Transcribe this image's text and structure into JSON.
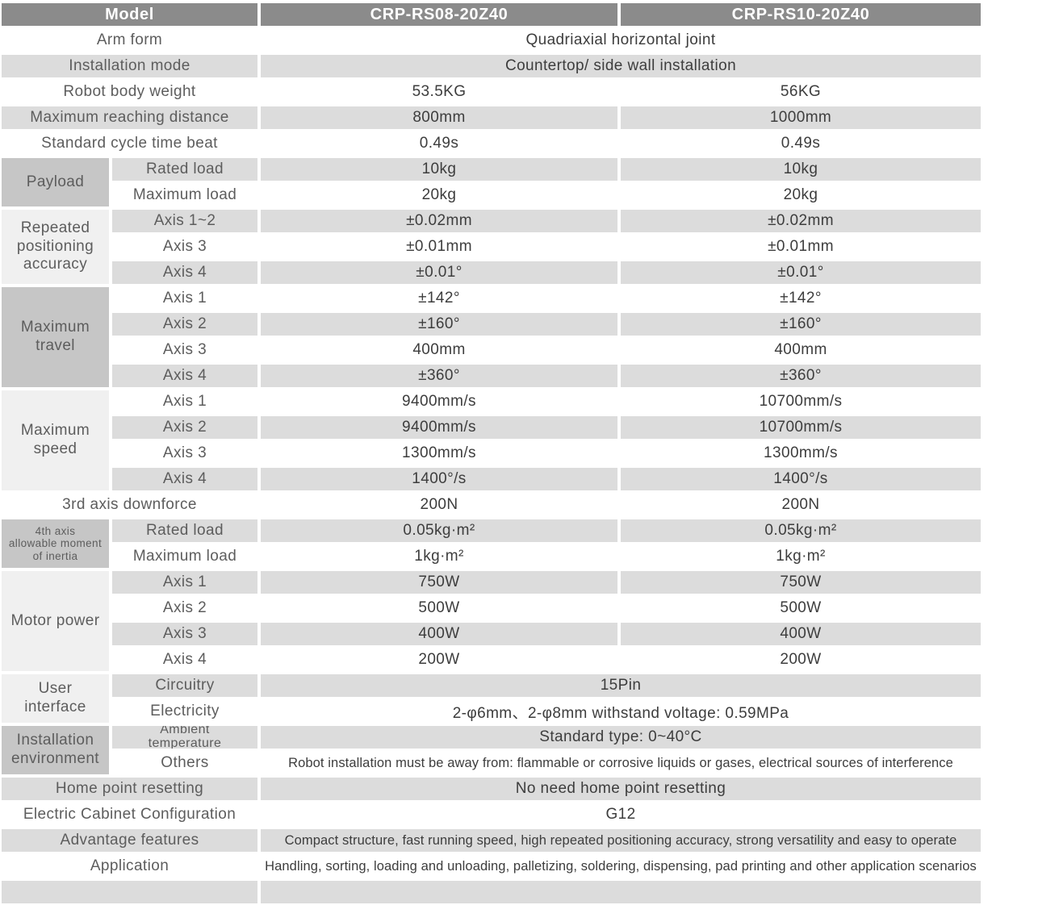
{
  "header": {
    "model_label": "Model",
    "col1": "CRP-RS08-20Z40",
    "col2": "CRP-RS10-20Z40"
  },
  "colors": {
    "header_bg": "#8b8b8b",
    "header_text": "#ffffff",
    "row_gray": "#dcdcdc",
    "cat_dark": "#c6c6c6",
    "cat_light": "#f0f0f0",
    "label_text": "#5d5d5d",
    "value_text": "#3d3d3d"
  },
  "rows": [
    {
      "label": "Arm form",
      "merged": "Quadriaxial horizontal joint",
      "shade": "white"
    },
    {
      "label": "Installation mode",
      "merged": "Countertop/ side wall installation",
      "shade": "gray"
    },
    {
      "label": "Robot body weight",
      "values": [
        "53.5KG",
        "56KG"
      ],
      "shade": "white"
    },
    {
      "label": "Maximum reaching distance",
      "values": [
        "800mm",
        "1000mm"
      ],
      "shade": "gray"
    },
    {
      "label": "Standard cycle time beat",
      "values": [
        "0.49s",
        "0.49s"
      ],
      "shade": "white"
    },
    {
      "sub": "Rated load",
      "values": [
        "10kg",
        "10kg"
      ],
      "shade": "gray"
    },
    {
      "sub": "Maximum load",
      "values": [
        "20kg",
        "20kg"
      ],
      "shade": "white"
    },
    {
      "sub": "Axis 1~2",
      "values": [
        "±0.02mm",
        "±0.02mm"
      ],
      "shade": "gray"
    },
    {
      "sub": "Axis 3",
      "values": [
        "±0.01mm",
        "±0.01mm"
      ],
      "shade": "white"
    },
    {
      "sub": "Axis 4",
      "values": [
        "±0.01°",
        "±0.01°"
      ],
      "shade": "gray"
    },
    {
      "sub": "Axis 1",
      "values": [
        "±142°",
        "±142°"
      ],
      "shade": "white"
    },
    {
      "sub": "Axis 2",
      "values": [
        "±160°",
        "±160°"
      ],
      "shade": "gray"
    },
    {
      "sub": "Axis 3",
      "values": [
        "400mm",
        "400mm"
      ],
      "shade": "white"
    },
    {
      "sub": "Axis 4",
      "values": [
        "±360°",
        "±360°"
      ],
      "shade": "gray"
    },
    {
      "sub": "Axis 1",
      "values": [
        "9400mm/s",
        "10700mm/s"
      ],
      "shade": "white"
    },
    {
      "sub": "Axis 2",
      "values": [
        "9400mm/s",
        "10700mm/s"
      ],
      "shade": "gray"
    },
    {
      "sub": "Axis 3",
      "values": [
        "1300mm/s",
        "1300mm/s"
      ],
      "shade": "white"
    },
    {
      "sub": "Axis 4",
      "values": [
        "1400°/s",
        "1400°/s"
      ],
      "shade": "gray"
    },
    {
      "label": "3rd axis downforce",
      "values": [
        "200N",
        "200N"
      ],
      "shade": "white"
    },
    {
      "sub": "Rated load",
      "values": [
        "0.05kg·m²",
        "0.05kg·m²"
      ],
      "shade": "gray"
    },
    {
      "sub": "Maximum load",
      "values": [
        "1kg·m²",
        "1kg·m²"
      ],
      "shade": "white"
    },
    {
      "sub": "Axis 1",
      "values": [
        "750W",
        "750W"
      ],
      "shade": "gray"
    },
    {
      "sub": "Axis 2",
      "values": [
        "500W",
        "500W"
      ],
      "shade": "white"
    },
    {
      "sub": "Axis 3",
      "values": [
        "400W",
        "400W"
      ],
      "shade": "gray"
    },
    {
      "sub": "Axis 4",
      "values": [
        "200W",
        "200W"
      ],
      "shade": "white"
    },
    {
      "sub": "Circuitry",
      "merged": "15Pin",
      "shade": "gray"
    },
    {
      "sub": "Electricity",
      "merged": "2-φ6mm、2-φ8mm withstand voltage: 0.59MPa",
      "shade": "white"
    },
    {
      "sub": "Ambient\ntemperature",
      "sub_pre": true,
      "merged": "Standard type:  0~40°C",
      "shade": "gray"
    },
    {
      "sub": "Others",
      "merged": "Robot installation must be away from: flammable or corrosive liquids or gases, electrical sources of interference",
      "small": true,
      "shade": "white"
    },
    {
      "label": "Home point resetting",
      "merged": "No need home point resetting",
      "shade": "gray"
    },
    {
      "label": "Electric Cabinet Configuration",
      "merged": "G12",
      "shade": "white"
    },
    {
      "label": "Advantage features",
      "merged": "Compact structure, fast running speed, high repeated positioning accuracy, strong versatility and easy to operate",
      "small": true,
      "shade": "gray"
    },
    {
      "label": "Application",
      "merged": "Handling, sorting, loading and unloading, palletizing, soldering, dispensing, pad printing and other application scenarios",
      "small": true,
      "shade": "white"
    }
  ],
  "groups": [
    {
      "label": "Payload",
      "start": 5,
      "span": 2,
      "tone": "dark"
    },
    {
      "label": "Repeated\npositioning\naccuracy",
      "start": 7,
      "span": 3,
      "tone": "light"
    },
    {
      "label": "Maximum travel",
      "start": 10,
      "span": 4,
      "tone": "dark"
    },
    {
      "label": "Maximum speed",
      "start": 14,
      "span": 4,
      "tone": "light"
    },
    {
      "label": "4th axis\nallowable moment\nof inertia",
      "start": 19,
      "span": 2,
      "tone": "dark",
      "small": true
    },
    {
      "label": "Motor power",
      "start": 21,
      "span": 4,
      "tone": "light"
    },
    {
      "label": "User\ninterface",
      "start": 25,
      "span": 2,
      "tone": "light"
    },
    {
      "label": "Installation\nenvironment",
      "start": 27,
      "span": 2,
      "tone": "dark"
    }
  ]
}
